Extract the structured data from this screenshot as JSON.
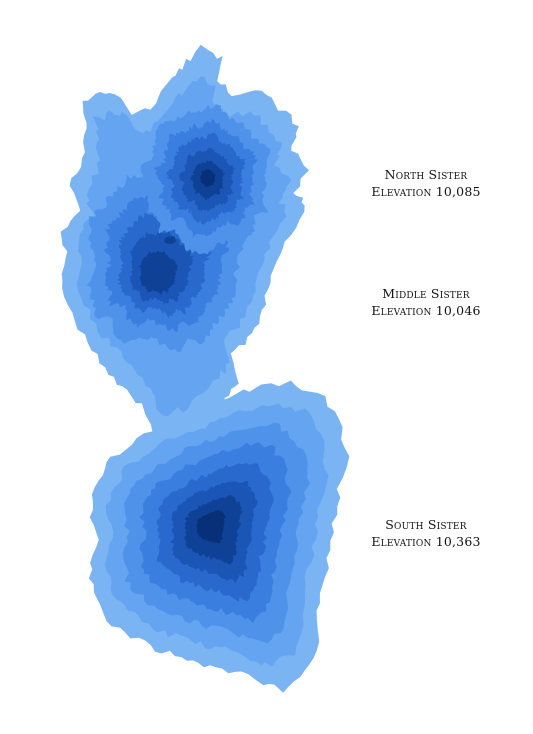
{
  "colors": {
    "background": "#ffffff",
    "contour_levels": [
      "#7ab4f3",
      "#65a4f0",
      "#4f92ea",
      "#3a7fe0",
      "#2969cd",
      "#1b55b5",
      "#0f4296",
      "#083078"
    ]
  },
  "peaks": [
    {
      "name": "North Sister",
      "elevation": "Elevation 10,085"
    },
    {
      "name": "Middle Sister",
      "elevation": "Elevation 10,046"
    },
    {
      "name": "South Sister",
      "elevation": "Elevation 10,363"
    }
  ]
}
